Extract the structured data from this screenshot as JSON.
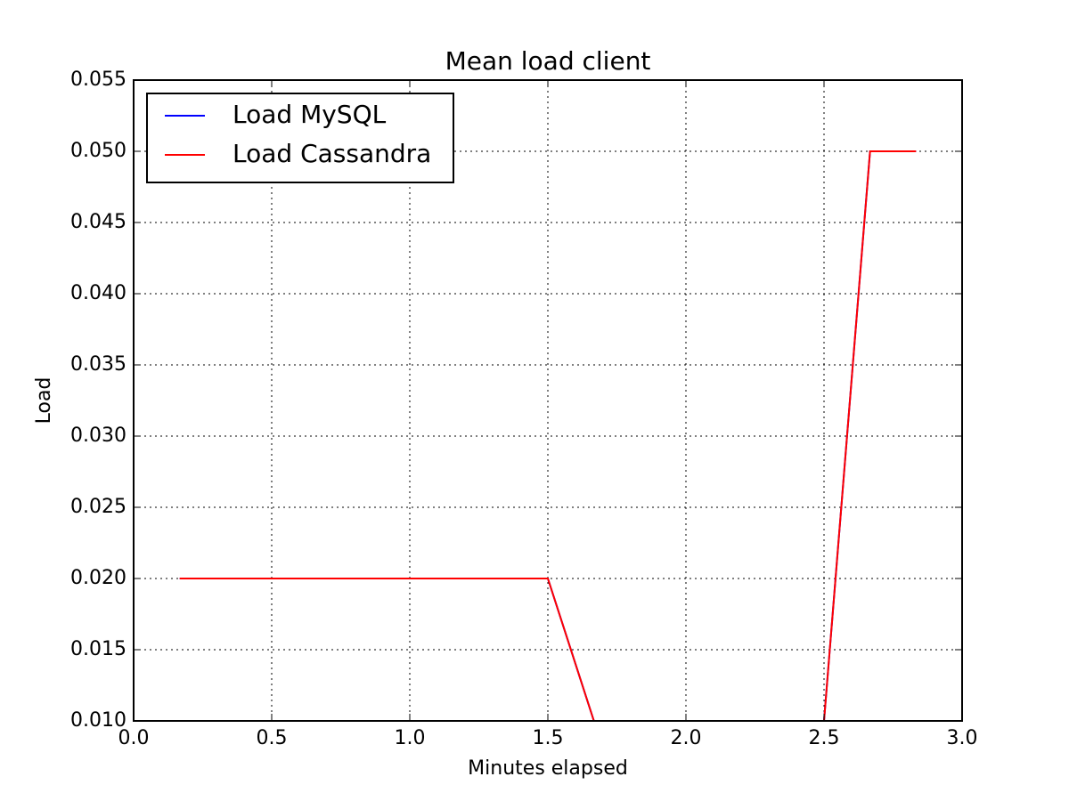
{
  "chart_data": {
    "type": "line",
    "title": "Mean load client",
    "xlabel": "Minutes elapsed",
    "ylabel": "Load",
    "x": [
      0.1667,
      0.3333,
      0.5,
      0.6667,
      0.8333,
      1.0,
      1.1667,
      1.3333,
      1.5,
      1.6667,
      1.8333,
      2.0,
      2.1667,
      2.3333,
      2.5,
      2.6667,
      2.8333
    ],
    "series": [
      {
        "name": "Load MySQL",
        "color": "#0000ff",
        "values": [
          0.02,
          0.02,
          0.02,
          0.02,
          0.02,
          0.02,
          0.02,
          0.02,
          0.02,
          0.01,
          0.01,
          0.01,
          0.01,
          0.01,
          0.01,
          0.05,
          0.05
        ]
      },
      {
        "name": "Load Cassandra",
        "color": "#ff0000",
        "values": [
          0.02,
          0.02,
          0.02,
          0.02,
          0.02,
          0.02,
          0.02,
          0.02,
          0.02,
          0.01,
          0.01,
          0.01,
          0.01,
          0.01,
          0.01,
          0.05,
          0.05
        ]
      }
    ],
    "xlim": [
      0,
      3
    ],
    "ylim": [
      0.01,
      0.055
    ],
    "xticks": [
      {
        "value": 0,
        "label": "0.0"
      },
      0.5,
      {
        "value": 1,
        "label": "1.0"
      },
      1.5,
      {
        "value": 2,
        "label": "2.0"
      },
      2.5,
      {
        "value": 3,
        "label": "3.0"
      }
    ],
    "yticks": [
      {
        "value": 0.01,
        "label": "0.010"
      },
      0.015,
      {
        "value": 0.02,
        "label": "0.020"
      },
      0.025,
      {
        "value": 0.03,
        "label": "0.030"
      },
      0.035,
      {
        "value": 0.04,
        "label": "0.040"
      },
      0.045,
      {
        "value": 0.05,
        "label": "0.050"
      },
      0.055
    ],
    "grid": true,
    "legend": "upper left"
  }
}
